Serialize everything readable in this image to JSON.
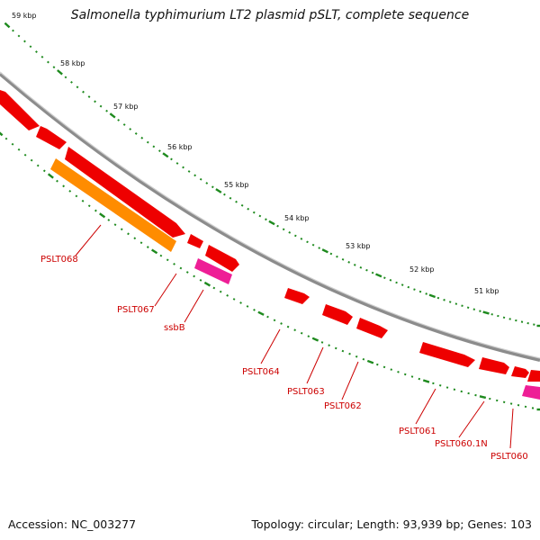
{
  "title": "Salmonella typhimurium LT2 plasmid pSLT, complete sequence",
  "accession": "Accession: NC_003277",
  "stats": "Topology: circular; Length: 93,939 bp; Genes: 103",
  "colors": {
    "backbone": "#8c8c8c",
    "ruler": "#1e8a1e",
    "label": "#cc0000",
    "gene": "#ee0000",
    "gene_orange": "#ff8c00",
    "gene_pink": "#ee1e96"
  },
  "ruler_labels": [
    "59 kbp",
    "58 kbp",
    "57 kbp",
    "56 kbp",
    "55 kbp",
    "54 kbp",
    "53 kbp",
    "52 kbp",
    "51 kbp"
  ],
  "gene_labels": [
    "PSLT068",
    "PSLT067",
    "ssbB",
    "PSLT064",
    "PSLT063",
    "PSLT062",
    "PSLT061",
    "PSLT060.1N",
    "PSLT060"
  ]
}
